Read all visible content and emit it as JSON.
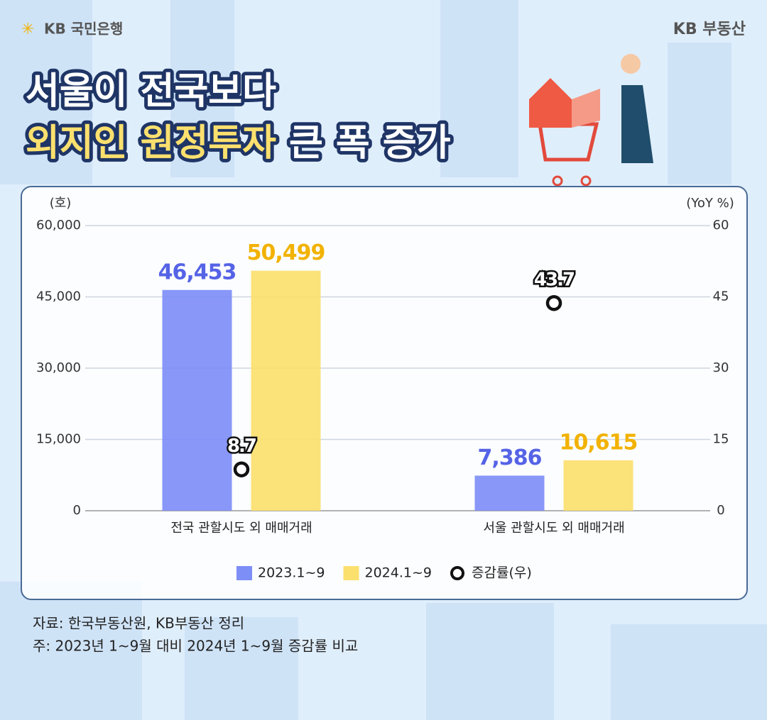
{
  "header": {
    "brand_left": "KB 국민은행",
    "brand_right": "KB 부동산",
    "title": [
      "서울이 전국보다",
      "외지인 원정투자",
      "큰 폭 증가"
    ]
  },
  "chart_data": {
    "type": "bar",
    "categories": [
      "전국 관할시도 외 매매거래",
      "서울 관할시도 외 매매거래"
    ],
    "y_label": "(호)",
    "y2_label": "(YoY %)",
    "ylim": [
      0,
      60000
    ],
    "yticks": [
      {
        "value": 0,
        "label": "0"
      },
      {
        "value": 15000,
        "label": "15,000"
      },
      {
        "value": 30000,
        "label": "30,000"
      },
      {
        "value": 45000,
        "label": "45,000"
      },
      {
        "value": 60000,
        "label": "60,000"
      }
    ],
    "y2lim": [
      0,
      60
    ],
    "y2ticks": [
      0,
      15,
      30,
      45,
      60
    ],
    "grid": true,
    "series": [
      {
        "name": "2023.1~9",
        "color": "#7e8ef7",
        "label_color": "#5563e6",
        "values": [
          46453,
          7386
        ],
        "value_labels": [
          "46,453",
          "7,386"
        ]
      },
      {
        "name": "2024.1~9",
        "color": "#fbe06e",
        "label_color": "#f2b200",
        "values": [
          50499,
          10615
        ],
        "value_labels": [
          "50,499",
          "10,615"
        ]
      },
      {
        "name": "증감률(우)",
        "type": "scatter",
        "axis": "y2",
        "color": "#111111",
        "values": [
          8.7,
          43.7
        ]
      }
    ]
  },
  "footer": {
    "source": "자료: 한국부동산원, KB부동산 정리",
    "note": "주: 2023년 1~9월 대비 2024년 1~9월 증감률 비교"
  }
}
